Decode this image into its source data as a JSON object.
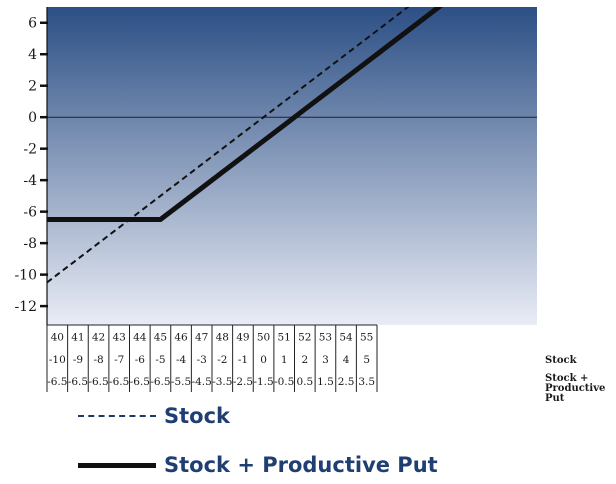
{
  "chart_data": {
    "type": "line",
    "y_ticks": [
      "6",
      "4",
      "2",
      "0",
      "-2",
      "-4",
      "-6",
      "-8",
      "-10",
      "-12"
    ],
    "ylim": [
      -13.2,
      7
    ],
    "x": [
      40,
      41,
      42,
      43,
      44,
      45,
      46,
      47,
      48,
      49,
      50,
      51,
      52,
      53,
      54,
      55
    ],
    "series": [
      {
        "name": "Stock",
        "style": "dashed",
        "color": "#111111",
        "values": [
          -10,
          -9,
          -8,
          -7,
          -6,
          -5,
          -4,
          -3,
          -2,
          -1,
          0,
          1,
          2,
          3,
          4,
          5
        ]
      },
      {
        "name": "Stock + Productive Put",
        "style": "solid",
        "color": "#111111",
        "values": [
          -6.5,
          -6.5,
          -6.5,
          -6.5,
          -6.5,
          -6.5,
          -5.5,
          -4.5,
          -3.5,
          -2.5,
          -1.5,
          -0.5,
          0.5,
          1.5,
          2.5,
          3.5
        ]
      }
    ],
    "table": {
      "row1": [
        "40",
        "41",
        "42",
        "43",
        "44",
        "45",
        "46",
        "47",
        "48",
        "49",
        "50",
        "51",
        "52",
        "53",
        "54",
        "55"
      ],
      "row2": [
        "-10",
        "-9",
        "-8",
        "-7",
        "-6",
        "-5",
        "-4",
        "-3",
        "-2",
        "-1",
        "0",
        "1",
        "2",
        "3",
        "4",
        "5"
      ],
      "row3": [
        "-6.5",
        "-6.5",
        "-6.5",
        "-6.5",
        "-6.5",
        "-6.5",
        "-5.5",
        "-4.5",
        "-3.5",
        "-2.5",
        "-1.5",
        "-0.5",
        "0.5",
        "1.5",
        "2.5",
        "3.5"
      ],
      "row2_label": "Stock",
      "row3_label": [
        "Stock +",
        "Productive",
        "Put"
      ]
    },
    "zero_line": true,
    "background_gradient": [
      "#2c4f85",
      "#e9ecf5"
    ]
  },
  "legend": [
    {
      "label": "Stock"
    },
    {
      "label": "Stock + Productive Put"
    }
  ]
}
